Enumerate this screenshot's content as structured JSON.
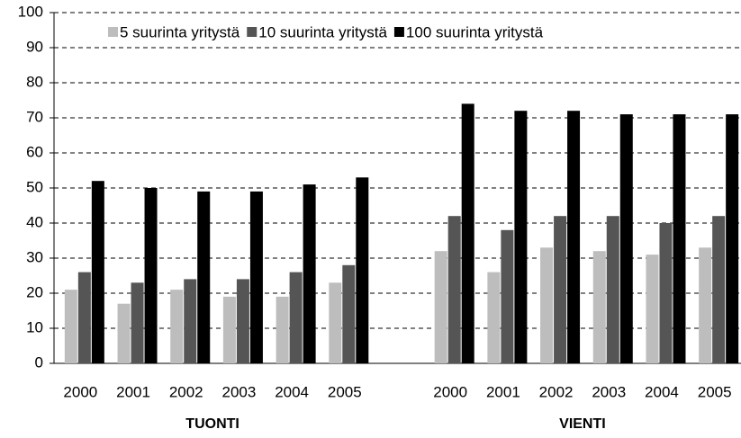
{
  "chart_data": {
    "type": "bar",
    "categories": [
      "2000",
      "2001",
      "2002",
      "2003",
      "2004",
      "2005",
      null,
      "2000",
      "2001",
      "2002",
      "2003",
      "2004",
      "2005"
    ],
    "group_labels": [
      "TUONTI",
      "VIENTI"
    ],
    "series": [
      {
        "name": "5 suurinta yritystä",
        "color": "#bdbdbd",
        "values": [
          21,
          17,
          21,
          19,
          19,
          23,
          null,
          32,
          26,
          33,
          32,
          31,
          33
        ]
      },
      {
        "name": "10 suurinta yritystä",
        "color": "#555555",
        "values": [
          26,
          23,
          24,
          24,
          26,
          28,
          null,
          42,
          38,
          42,
          42,
          40,
          42
        ]
      },
      {
        "name": "100 suurinta yritystä",
        "color": "#000000",
        "values": [
          52,
          50,
          49,
          49,
          51,
          53,
          null,
          74,
          72,
          72,
          71,
          71,
          71
        ]
      }
    ],
    "ylim": [
      0,
      100
    ],
    "yticks": [
      0,
      10,
      20,
      30,
      40,
      50,
      60,
      70,
      80,
      90,
      100
    ],
    "grid": true,
    "legend": "top"
  }
}
